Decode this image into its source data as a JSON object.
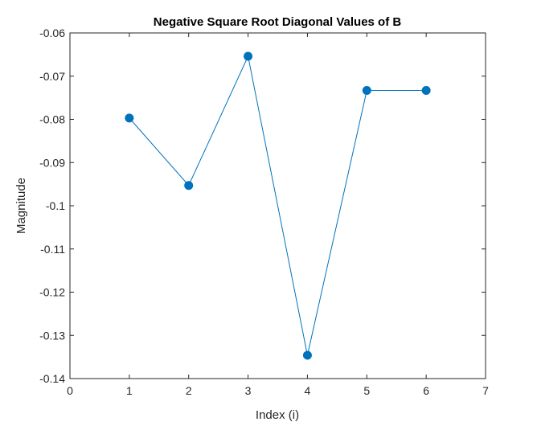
{
  "chart_data": {
    "type": "line",
    "title": "Negative Square Root Diagonal Values of B",
    "xlabel": "Index (i)",
    "ylabel": "Magnitude",
    "xlim": [
      0,
      7
    ],
    "ylim": [
      -0.14,
      -0.06
    ],
    "xticks": [
      0,
      1,
      2,
      3,
      4,
      5,
      6,
      7
    ],
    "yticks": [
      -0.14,
      -0.13,
      -0.12,
      -0.11,
      -0.1,
      -0.09,
      -0.08,
      -0.07,
      -0.06
    ],
    "xtick_labels": [
      "0",
      "1",
      "2",
      "3",
      "4",
      "5",
      "6",
      "7"
    ],
    "ytick_labels": [
      "-0.14",
      "-0.13",
      "-0.12",
      "-0.11",
      "-0.1",
      "-0.09",
      "-0.08",
      "-0.07",
      "-0.06"
    ],
    "grid": false,
    "series": [
      {
        "x": [
          1,
          2,
          3,
          4,
          5,
          6
        ],
        "values": [
          -0.0797,
          -0.0953,
          -0.0654,
          -0.1346,
          -0.0733,
          -0.0733
        ],
        "color": "#0072BD",
        "marker": "filled-circle"
      }
    ]
  }
}
